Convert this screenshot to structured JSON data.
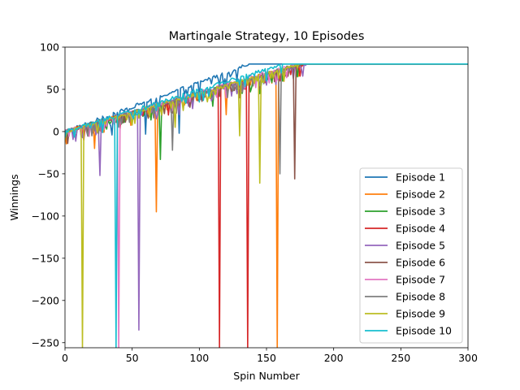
{
  "chart_data": {
    "type": "line",
    "title": "Martingale Strategy, 10 Episodes",
    "xlabel": "Spin Number",
    "ylabel": "Winnings",
    "xlim": [
      0,
      300
    ],
    "ylim": [
      -256,
      100
    ],
    "xticks": [
      0,
      50,
      100,
      150,
      200,
      250,
      300
    ],
    "yticks": [
      -250,
      -200,
      -150,
      -100,
      -50,
      0,
      50,
      100
    ],
    "grid": false,
    "legend_position": "lower right",
    "series": [
      {
        "name": "Episode 1",
        "color": "#1f77b4",
        "reached_target_at_spin": 137,
        "final": 80,
        "dips": [
          [
            12,
            -6
          ],
          [
            35,
            -4
          ],
          [
            60,
            -3
          ],
          [
            85,
            -2
          ],
          [
            100,
            42
          ],
          [
            120,
            55
          ]
        ]
      },
      {
        "name": "Episode 2",
        "color": "#ff7f0e",
        "reached_target_at_spin": 175,
        "final": 80,
        "dips": [
          [
            22,
            -20
          ],
          [
            68,
            -95
          ],
          [
            120,
            20
          ],
          [
            158,
            -256
          ],
          [
            175,
            48
          ]
        ]
      },
      {
        "name": "Episode 3",
        "color": "#2ca02c",
        "reached_target_at_spin": 178,
        "final": 80,
        "dips": [
          [
            8,
            -8
          ],
          [
            71,
            -33
          ],
          [
            110,
            30
          ],
          [
            145,
            45
          ]
        ]
      },
      {
        "name": "Episode 4",
        "color": "#d62728",
        "reached_target_at_spin": 178,
        "final": 80,
        "dips": [
          [
            14,
            -10
          ],
          [
            115,
            -256
          ],
          [
            136,
            -256
          ],
          [
            160,
            60
          ]
        ]
      },
      {
        "name": "Episode 5",
        "color": "#9467bd",
        "reached_target_at_spin": 180,
        "final": 80,
        "dips": [
          [
            26,
            -52
          ],
          [
            55,
            -235
          ],
          [
            85,
            20
          ],
          [
            110,
            40
          ],
          [
            150,
            55
          ]
        ]
      },
      {
        "name": "Episode 6",
        "color": "#8c564b",
        "reached_target_at_spin": 178,
        "final": 80,
        "dips": [
          [
            30,
            5
          ],
          [
            80,
            22
          ],
          [
            130,
            40
          ],
          [
            171,
            -56
          ]
        ]
      },
      {
        "name": "Episode 7",
        "color": "#e377c2",
        "reached_target_at_spin": 172,
        "final": 80,
        "dips": [
          [
            20,
            5
          ],
          [
            40,
            -256
          ],
          [
            80,
            25
          ],
          [
            120,
            40
          ]
        ]
      },
      {
        "name": "Episode 8",
        "color": "#7f7f7f",
        "reached_target_at_spin": 175,
        "final": 80,
        "dips": [
          [
            20,
            -5
          ],
          [
            80,
            -22
          ],
          [
            160,
            -50
          ]
        ]
      },
      {
        "name": "Episode 9",
        "color": "#bcbd22",
        "reached_target_at_spin": 176,
        "final": 80,
        "dips": [
          [
            13,
            -256
          ],
          [
            82,
            5
          ],
          [
            130,
            -5
          ],
          [
            145,
            -61
          ]
        ]
      },
      {
        "name": "Episode 10",
        "color": "#17becf",
        "reached_target_at_spin": 162,
        "final": 80,
        "dips": [
          [
            38,
            -256
          ],
          [
            100,
            35
          ],
          [
            130,
            55
          ]
        ]
      }
    ]
  }
}
